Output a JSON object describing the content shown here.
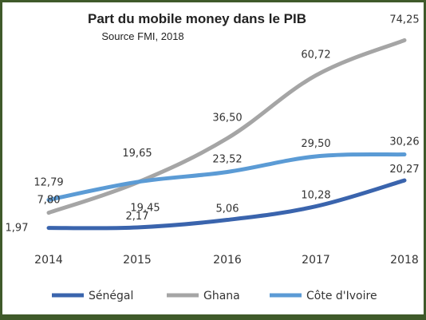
{
  "chart_data": {
    "type": "line",
    "title": "Part du mobile money dans le PIB",
    "subtitle": "Source FMI, 2018",
    "categories": [
      "2014",
      "2015",
      "2016",
      "2017",
      "2018"
    ],
    "series": [
      {
        "name": "Sénégal",
        "color": "#3a64ad",
        "values": [
          1.97,
          2.17,
          5.06,
          10.28,
          20.27
        ],
        "labels": [
          "1,97",
          "2,17",
          "5,06",
          "10,28",
          "20,27"
        ]
      },
      {
        "name": "Ghana",
        "color": "#a5a5a5",
        "values": [
          7.8,
          19.45,
          36.5,
          60.72,
          74.25
        ],
        "labels": [
          "7,80",
          "19,45",
          "36,50",
          "60,72",
          "74,25"
        ]
      },
      {
        "name": "Côte d'Ivoire",
        "color": "#5b9bd5",
        "values": [
          12.79,
          19.65,
          23.52,
          29.5,
          30.26
        ],
        "labels": [
          "12,79",
          "19,65",
          "23,52",
          "29,50",
          "30,26"
        ]
      }
    ],
    "ylim": [
      0,
      75
    ],
    "grid": false,
    "legend_position": "bottom"
  }
}
